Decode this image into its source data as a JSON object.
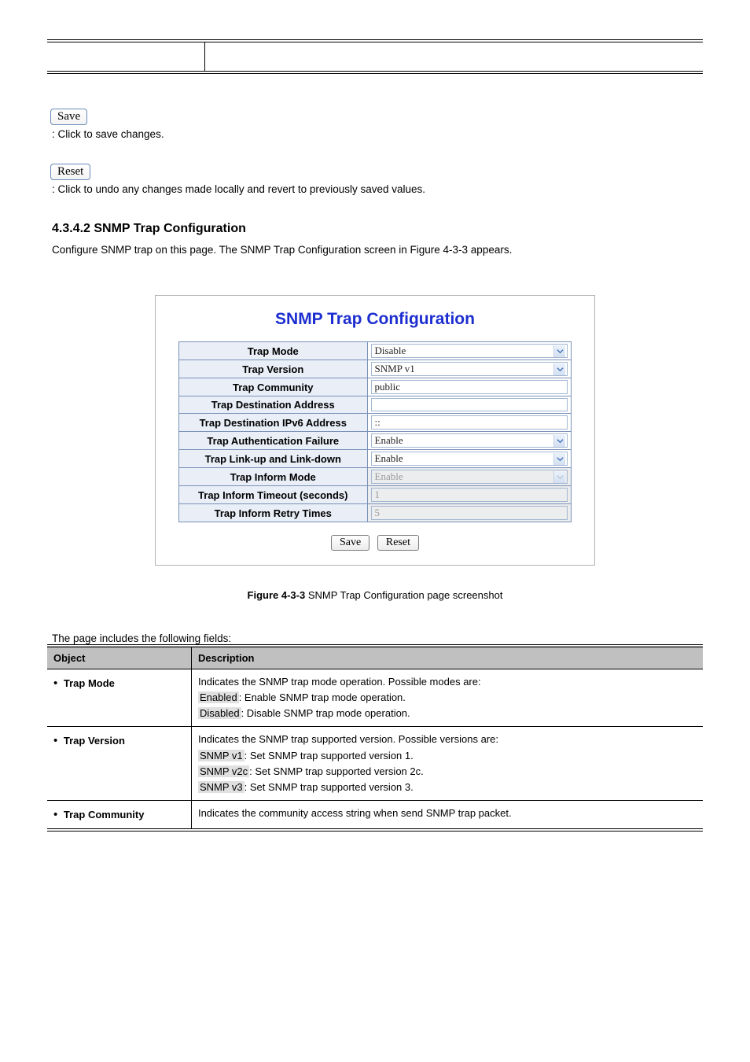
{
  "buttons": {
    "save_top": "Save",
    "reset_top": "Reset",
    "save_desc": ": Click to save changes.",
    "reset_desc": ": Click to undo any changes made locally and revert to previously saved values."
  },
  "section": {
    "heading": "4.3.4.2 SNMP Trap Configuration",
    "sentence_prefix": "Configure SNMP trap on this page. The SNMP Trap Configuration screen in ",
    "figure_ref": "Figure 4-3-3",
    "sentence_suffix": " appears."
  },
  "figure": {
    "title": "SNMP Trap Configuration",
    "rows": [
      {
        "label": "Trap Mode",
        "value": "Disable",
        "type": "select",
        "disabled": false
      },
      {
        "label": "Trap Version",
        "value": "SNMP v1",
        "type": "select",
        "disabled": false
      },
      {
        "label": "Trap Community",
        "value": "public",
        "type": "input",
        "disabled": false
      },
      {
        "label": "Trap Destination Address",
        "value": "",
        "type": "input",
        "disabled": false
      },
      {
        "label": "Trap Destination IPv6 Address",
        "value": "::",
        "type": "input",
        "disabled": false
      },
      {
        "label": "Trap Authentication Failure",
        "value": "Enable",
        "type": "select",
        "disabled": false
      },
      {
        "label": "Trap Link-up and Link-down",
        "value": "Enable",
        "type": "select",
        "disabled": false
      },
      {
        "label": "Trap Inform Mode",
        "value": "Enable",
        "type": "select",
        "disabled": true
      },
      {
        "label": "Trap Inform Timeout (seconds)",
        "value": "1",
        "type": "input",
        "disabled": true
      },
      {
        "label": "Trap Inform Retry Times",
        "value": "5",
        "type": "input",
        "disabled": true
      }
    ],
    "btn_save": "Save",
    "btn_reset": "Reset",
    "caption_bold": "Figure 4-3-3",
    "caption_rest": " SNMP Trap Configuration page screenshot"
  },
  "param_intro": "The page includes the following fields:",
  "param_table": {
    "head_object": "Object",
    "head_desc": "Description",
    "rows": [
      {
        "object": "Trap Mode",
        "lines": [
          {
            "text": "Indicates the SNMP trap mode operation. Possible modes are:"
          },
          {
            "hl": "Enabled",
            "text": ": Enable SNMP trap mode operation."
          },
          {
            "hl": "Disabled",
            "text": ": Disable SNMP trap mode operation."
          }
        ]
      },
      {
        "object": "Trap Version",
        "lines": [
          {
            "text": "Indicates the SNMP trap supported version. Possible versions are:"
          },
          {
            "hl": "SNMP v1",
            "text": ": Set SNMP trap supported version 1."
          },
          {
            "hl": "SNMP v2c",
            "text": ": Set SNMP trap supported version 2c."
          },
          {
            "hl": "SNMP v3",
            "text": ": Set SNMP trap supported version 3."
          }
        ]
      },
      {
        "object": "Trap Community",
        "lines": [
          {
            "text": "Indicates the community access string when send SNMP trap packet."
          }
        ]
      }
    ]
  },
  "colors": {
    "title": "#1d2ed0",
    "cell_border": "#7a91b9",
    "label_bg": "#e9eef7",
    "disabled_bg": "#ecedee",
    "th_bg": "#c0c0c0",
    "hl_bg": "#e0e0e0"
  }
}
